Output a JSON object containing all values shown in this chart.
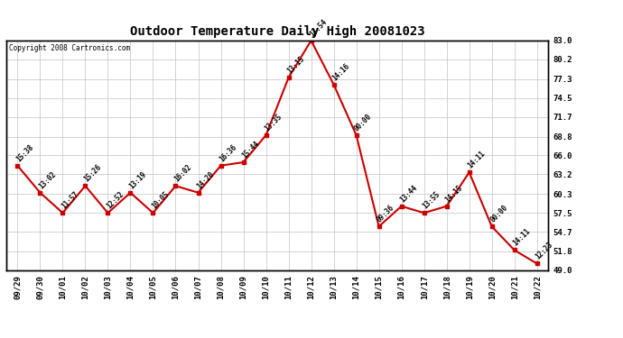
{
  "title": "Outdoor Temperature Daily High 20081023",
  "copyright": "Copyright 2008 Cartronics.com",
  "background_color": "#ffffff",
  "line_color": "#cc0000",
  "marker_color": "#cc0000",
  "grid_color": "#cccccc",
  "dates": [
    "09/29",
    "09/30",
    "10/01",
    "10/02",
    "10/03",
    "10/04",
    "10/05",
    "10/06",
    "10/07",
    "10/08",
    "10/09",
    "10/10",
    "10/11",
    "10/12",
    "10/13",
    "10/14",
    "10/15",
    "10/16",
    "10/17",
    "10/18",
    "10/19",
    "10/20",
    "10/21",
    "10/22"
  ],
  "temps": [
    64.5,
    60.5,
    57.5,
    61.5,
    57.5,
    60.5,
    57.5,
    61.5,
    60.5,
    64.5,
    65.0,
    69.0,
    77.5,
    83.0,
    76.5,
    69.0,
    55.5,
    58.5,
    57.5,
    58.5,
    63.5,
    55.5,
    52.0,
    50.0
  ],
  "times": [
    "15:38",
    "13:02",
    "11:57",
    "15:26",
    "12:52",
    "13:19",
    "10:05",
    "16:02",
    "14:20",
    "16:36",
    "15:44",
    "13:35",
    "13:15",
    "13:54",
    "14:16",
    "00:00",
    "09:36",
    "13:44",
    "13:55",
    "14:15",
    "14:11",
    "00:00",
    "14:11",
    "12:23"
  ],
  "yticks": [
    49.0,
    51.8,
    54.7,
    57.5,
    60.3,
    63.2,
    66.0,
    68.8,
    71.7,
    74.5,
    77.3,
    80.2,
    83.0
  ],
  "ylim_min": 49.0,
  "ylim_max": 83.0,
  "title_fontsize": 10,
  "tick_fontsize": 6.5,
  "annotation_fontsize": 5.5
}
